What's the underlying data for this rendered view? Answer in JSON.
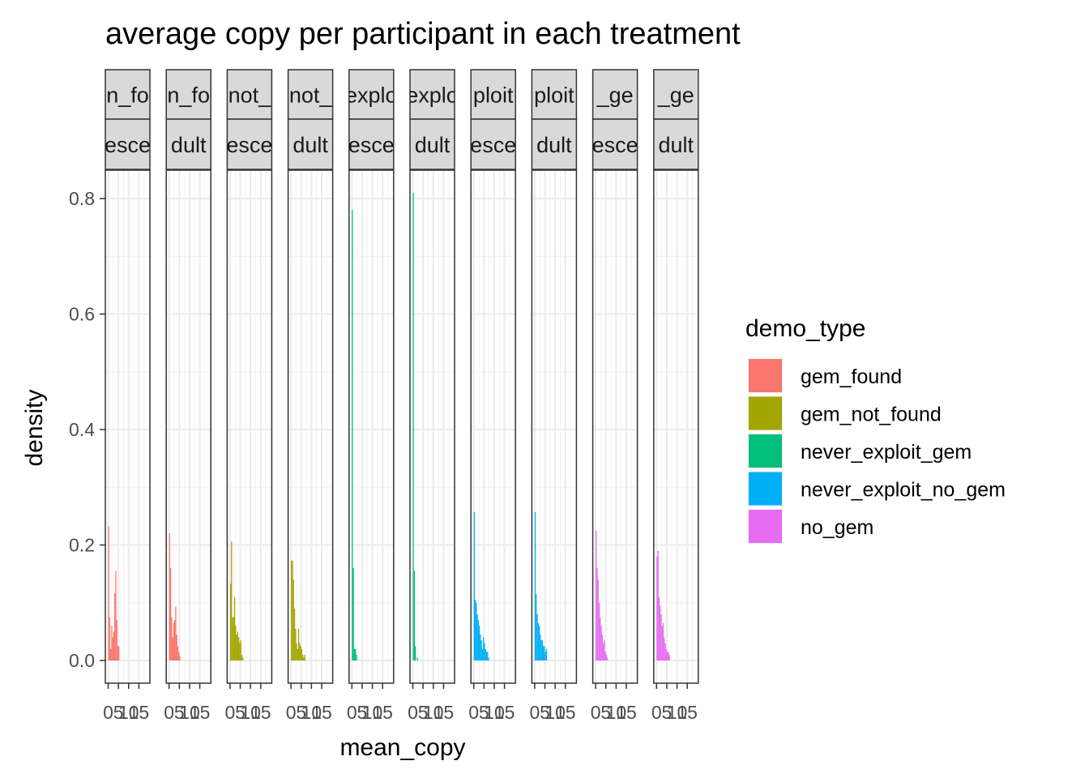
{
  "chart_data": {
    "type": "bar",
    "title": "average copy per participant in each treatment",
    "xlabel": "mean_copy",
    "ylabel": "density",
    "ylim": [
      0,
      0.8
    ],
    "y_ticks": [
      "0.0",
      "0.2",
      "0.4",
      "0.6",
      "0.8"
    ],
    "x_tick_labels": [
      "0",
      "5",
      "10",
      "15"
    ],
    "grid": true,
    "legend": {
      "title": "demo_type",
      "placement": "right",
      "entries": [
        {
          "name": "gem_found",
          "color": "#F8766D"
        },
        {
          "name": "gem_not_found",
          "color": "#A3A500"
        },
        {
          "name": "never_exploit_gem",
          "color": "#00BF7D"
        },
        {
          "name": "never_exploit_no_gem",
          "color": "#00B0F6"
        },
        {
          "name": "no_gem",
          "color": "#E76BF3"
        }
      ]
    },
    "panels": [
      {
        "strip_top": "n_fo",
        "strip_bottom": "esce",
        "demo_type": "gem_found",
        "bin_start": 0,
        "bin_width": 0.5,
        "values": [
          0.233,
          0.075,
          0.02,
          0.06,
          0.04,
          0.05,
          0.117,
          0.155,
          0.07,
          0.025,
          0.025
        ]
      },
      {
        "strip_top": "n_fo",
        "strip_bottom": "dult",
        "demo_type": "gem_found",
        "bin_start": 0,
        "bin_width": 0.5,
        "values": [
          0.22,
          0.16,
          0.075,
          0.04,
          0.065,
          0.07,
          0.093,
          0.045,
          0.025,
          0.015,
          0.008
        ]
      },
      {
        "strip_top": "not_",
        "strip_bottom": "esce",
        "demo_type": "gem_not_found",
        "bin_start": 0,
        "bin_width": 0.5,
        "values": [
          0.133,
          0.206,
          0.075,
          0.075,
          0.11,
          0.06,
          0.045,
          0.05,
          0.04,
          0.03,
          0.035,
          0.01,
          0.005
        ]
      },
      {
        "strip_top": "not_",
        "strip_bottom": "dult",
        "demo_type": "gem_not_found",
        "bin_start": 0,
        "bin_width": 0.5,
        "values": [
          0.173,
          0.173,
          0.14,
          0.09,
          0.055,
          0.03,
          0.02,
          0.055,
          0.03,
          0.025,
          0.02,
          0.01,
          0.005,
          0.01
        ]
      },
      {
        "strip_top": "explo",
        "strip_bottom": "esce",
        "demo_type": "never_exploit_gem",
        "bin_start": 0,
        "bin_width": 0.5,
        "values": [
          0.78,
          0.16,
          0.02,
          0.02,
          0.01
        ]
      },
      {
        "strip_top": "explo",
        "strip_bottom": "dult",
        "demo_type": "never_exploit_gem",
        "bin_start": 0,
        "bin_width": 0.5,
        "values": [
          0.81,
          0.155,
          0.025,
          0.0,
          0.005
        ]
      },
      {
        "strip_top": "ploit",
        "strip_bottom": "esce",
        "demo_type": "never_exploit_no_gem",
        "bin_start": 0,
        "bin_width": 0.5,
        "values": [
          0.257,
          0.105,
          0.1,
          0.08,
          0.07,
          0.06,
          0.045,
          0.035,
          0.02,
          0.04,
          0.03,
          0.02,
          0.015,
          0.015,
          0.005
        ]
      },
      {
        "strip_top": "ploit",
        "strip_bottom": "dult",
        "demo_type": "never_exploit_no_gem",
        "bin_start": 0,
        "bin_width": 0.5,
        "values": [
          0.257,
          0.115,
          0.08,
          0.065,
          0.06,
          0.045,
          0.035,
          0.035,
          0.025,
          0.025,
          0.015,
          0.02
        ]
      },
      {
        "strip_top": "_ge",
        "strip_bottom": "esce",
        "demo_type": "no_gem",
        "bin_start": 0,
        "bin_width": 0.5,
        "values": [
          0.225,
          0.16,
          0.14,
          0.1,
          0.075,
          0.06,
          0.045,
          0.03,
          0.035,
          0.015,
          0.01,
          0.005
        ]
      },
      {
        "strip_top": "_ge",
        "strip_bottom": "dult",
        "demo_type": "no_gem",
        "bin_start": 0,
        "bin_width": 0.5,
        "values": [
          0.18,
          0.19,
          0.11,
          0.095,
          0.08,
          0.06,
          0.065,
          0.04,
          0.03,
          0.02,
          0.015,
          0.015,
          0.01
        ]
      }
    ]
  }
}
